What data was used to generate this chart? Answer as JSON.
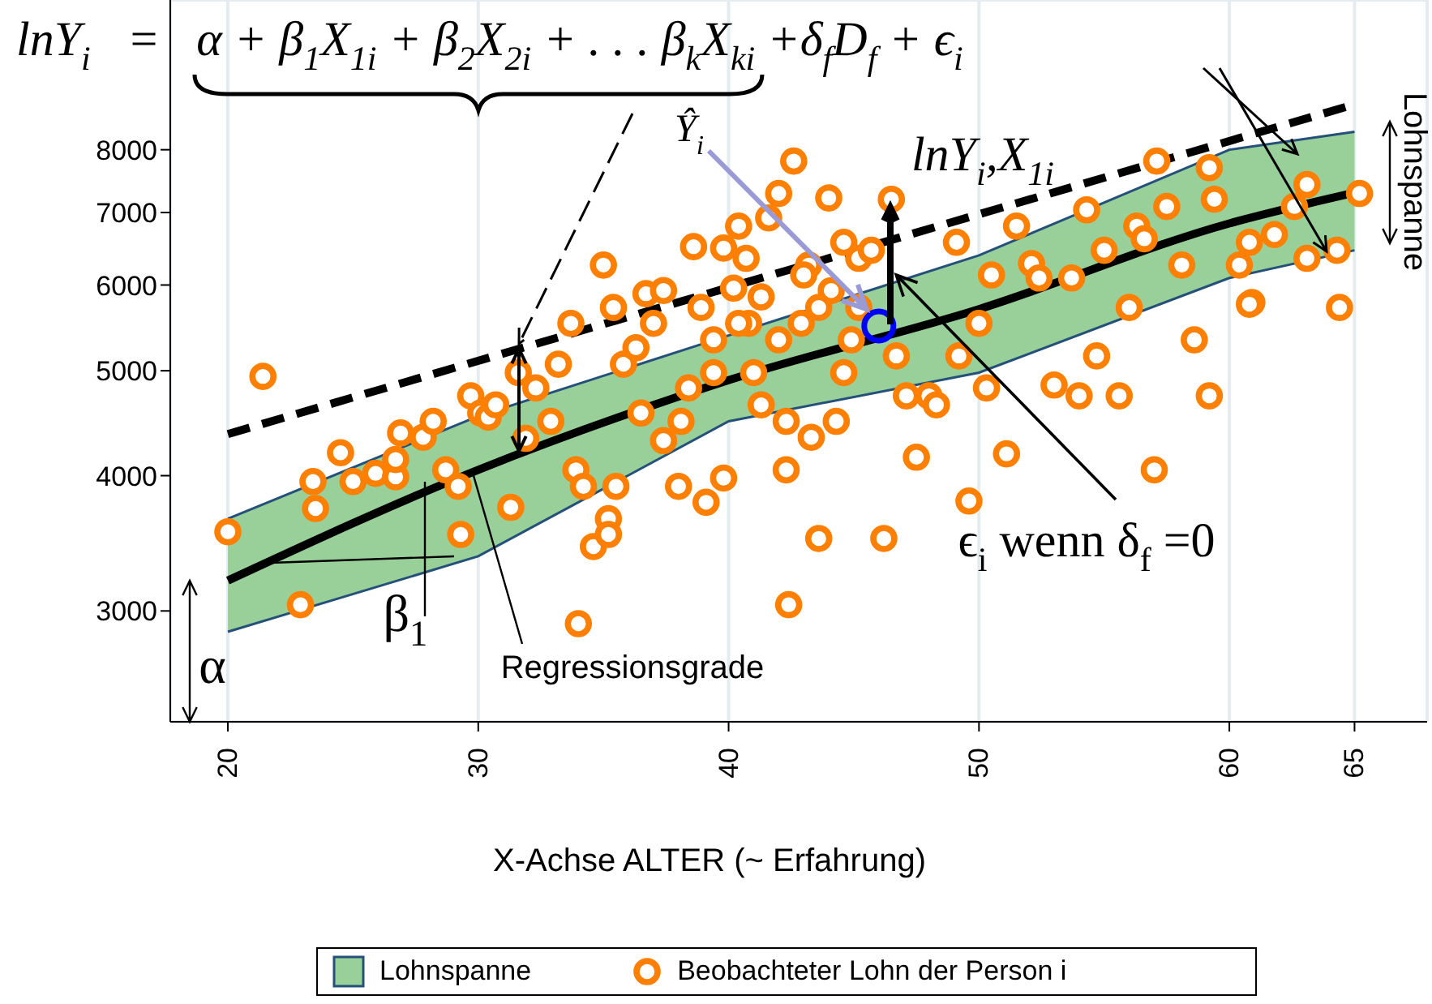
{
  "chart_data": {
    "type": "scatter",
    "xlabel": "X-Achse ALTER (~ Erfahrung)",
    "xlim": [
      17.7,
      67.9
    ],
    "xticks": [
      20,
      30,
      40,
      50,
      60,
      65
    ],
    "ylim": [
      2370,
      11000
    ],
    "yticks": [
      3000,
      4000,
      5000,
      6000,
      7000,
      8000
    ],
    "log": "y",
    "grid": true,
    "legend": "bottom",
    "annotations": [
      "lnY$_{i}$   =   α + β$_{1}$X$_{1i}$ + β$_{2}$X$_{2i}$ + . . . β$_{k}$X$_{ki}$ +δ$_{f}$D$_{f}$ + ϵ$_{i}$",
      {
        "text": "Ŷ$_{i}$",
        "x": 45.5,
        "y": 5700
      },
      {
        "text": "lnY$_{i}$,X$_{1i}$",
        "x": 46.5,
        "y": 7200
      },
      {
        "text": "ϵ$_{i}$ wenn δ$_{f}$ =0",
        "x": 46.5,
        "y": 6130
      },
      {
        "text": "β$_{1}$",
        "x": 28,
        "y": 3880
      },
      {
        "text": "α",
        "x": 20,
        "y": 3200
      },
      {
        "text": "Regressionsgrade",
        "x": 29.8,
        "y": 4010
      },
      "Lohnspanne"
    ],
    "series": [
      {
        "name": "Lohnspanne",
        "type": "area",
        "color": "#99cf99",
        "x": [
          20,
          30,
          40,
          50,
          60,
          65
        ],
        "values": [
          null,
          null,
          null,
          null,
          null,
          null
        ],
        "lower": [
          2870,
          3370,
          4490,
          4980,
          6090,
          6460
        ],
        "upper": [
          3650,
          4540,
          5390,
          6390,
          8000,
          8310
        ]
      },
      {
        "type": "line",
        "color": "#000000",
        "line_style": "solid",
        "marker": "none",
        "x": [
          20,
          30,
          40,
          50,
          60,
          65
        ],
        "values": [
          3200,
          4050,
          4900,
          5700,
          6840,
          7300
        ]
      },
      {
        "type": "line",
        "color": "#000000",
        "line_style": "dashed",
        "marker": "none",
        "x": [
          20,
          65
        ],
        "values": [
          4370,
          8810
        ]
      },
      {
        "name": "Beobachteter Lohn der Person i",
        "type": "scatter",
        "color": "#ff8000",
        "marker": "circle",
        "x": [
          20,
          21.4,
          22.9,
          23.4,
          24.5,
          23.5,
          25,
          25.9,
          26.7,
          26.7,
          26.9,
          27.8,
          28.2,
          28.7,
          29.2,
          29.7,
          30.1,
          30.4,
          30.7,
          29.3,
          31.3,
          31.6,
          31.9,
          32.3,
          32.9,
          33.2,
          33.7,
          33.9,
          34.2,
          34.6,
          35.2,
          35.2,
          35.5,
          34,
          35,
          35.4,
          35.8,
          36.3,
          36.7,
          37,
          37.4,
          37.4,
          38,
          38.4,
          38.6,
          38.9,
          39.1,
          39.4,
          39.8,
          40.2,
          40.4,
          40.7,
          40.8,
          41,
          41.3,
          41.6,
          42,
          42.3,
          42.3,
          42.4,
          42.6,
          42.9,
          43.2,
          43.3,
          43.6,
          44,
          44.1,
          44.3,
          44.6,
          44.9,
          45.2,
          45.7,
          46.2,
          46.5,
          46.7,
          47.1,
          47.5,
          48,
          48.3,
          49.1,
          49.2,
          49.6,
          50,
          50.3,
          50.5,
          51.1,
          51.5,
          52.1,
          52.4,
          53,
          53.7,
          54,
          54.3,
          54.7,
          55,
          55.6,
          56,
          56.3,
          56.6,
          57,
          57.5,
          57.1,
          58.1,
          58.6,
          59.2,
          59.4,
          59.2,
          60.4,
          60.8,
          60.9,
          61.8,
          62.6,
          63.1,
          63.1,
          64.3,
          65.2,
          64.4,
          60.8,
          39.8,
          39.4,
          40.4,
          41.3,
          42,
          43,
          43.6,
          44.6,
          45.2,
          38.1,
          36.5
        ],
        "values": [
          3550,
          4940,
          3040,
          3950,
          4200,
          3730,
          3950,
          4020,
          3990,
          4140,
          4380,
          4340,
          4490,
          4050,
          3910,
          4740,
          4570,
          4530,
          4650,
          3530,
          3740,
          4980,
          4330,
          4820,
          4490,
          5070,
          5530,
          4050,
          3910,
          3440,
          3650,
          3530,
          3910,
          2920,
          6260,
          5720,
          5070,
          5250,
          5890,
          5530,
          5930,
          4310,
          3910,
          4820,
          6510,
          5720,
          3780,
          5340,
          3980,
          5960,
          6800,
          6350,
          5530,
          4980,
          4650,
          6920,
          7290,
          4490,
          4050,
          3040,
          7810,
          5530,
          6260,
          4340,
          3500,
          7220,
          5930,
          4490,
          4980,
          5340,
          6350,
          6460,
          3500,
          7200,
          5160,
          4740,
          4160,
          4740,
          4650,
          6570,
          5160,
          3790,
          5530,
          4820,
          6130,
          4190,
          6800,
          6280,
          6090,
          4850,
          6090,
          4740,
          7040,
          5160,
          6460,
          4740,
          5720,
          6800,
          6620,
          4050,
          7090,
          7810,
          6260,
          5340,
          7700,
          7200,
          4740,
          6260,
          6570,
          5780,
          6680,
          7090,
          7430,
          6350,
          6460,
          7290,
          5720,
          5760,
          6490,
          4980,
          5530,
          5850,
          5340,
          6130,
          5720,
          6570,
          5720,
          4490,
          4570
        ]
      },
      {
        "color": "#0000ff",
        "marker": "circle",
        "x": [
          46
        ],
        "values": [
          5500
        ]
      }
    ]
  }
}
